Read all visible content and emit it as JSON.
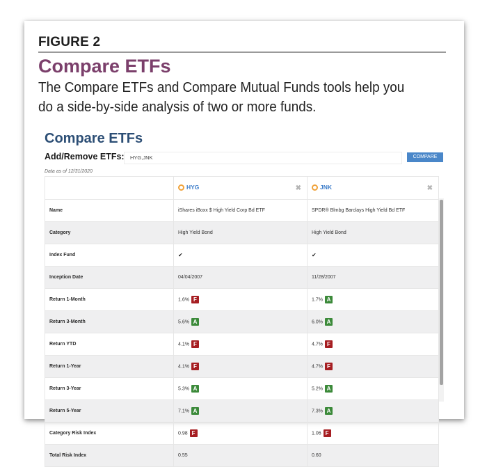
{
  "figure": {
    "label": "FIGURE 2",
    "title": "Compare ETFs",
    "description": "The Compare ETFs and Compare Mutual Funds tools help you do a side-by-side analysis of two or more funds."
  },
  "app": {
    "title": "Compare ETFs",
    "add_remove_label": "Add/Remove ETFs:",
    "input_value": "HYG,JNK",
    "compare_button": "COMPARE",
    "data_as_of": "Data as of 12/31/2020"
  },
  "funds": [
    {
      "ticker": "HYG",
      "remove_icon": "close-icon"
    },
    {
      "ticker": "JNK",
      "remove_icon": "close-icon"
    }
  ],
  "rows": [
    {
      "label": "Name",
      "values": [
        {
          "text": "iShares iBoxx $ High Yield Corp Bd ETF"
        },
        {
          "text": "SPDR® Blmbg Barclays High Yield Bd ETF"
        }
      ]
    },
    {
      "label": "Category",
      "values": [
        {
          "text": "High Yield Bond"
        },
        {
          "text": "High Yield Bond"
        }
      ]
    },
    {
      "label": "Index Fund",
      "values": [
        {
          "text": "✔"
        },
        {
          "text": "✔"
        }
      ]
    },
    {
      "label": "Inception Date",
      "values": [
        {
          "text": "04/04/2007"
        },
        {
          "text": "11/28/2007"
        }
      ]
    },
    {
      "label": "Return 1-Month",
      "values": [
        {
          "text": "1.6%",
          "grade": "F"
        },
        {
          "text": "1.7%",
          "grade": "A"
        }
      ]
    },
    {
      "label": "Return 3-Month",
      "values": [
        {
          "text": "5.6%",
          "grade": "A"
        },
        {
          "text": "6.0%",
          "grade": "A"
        }
      ]
    },
    {
      "label": "Return YTD",
      "values": [
        {
          "text": "4.1%",
          "grade": "F"
        },
        {
          "text": "4.7%",
          "grade": "F"
        }
      ]
    },
    {
      "label": "Return 1-Year",
      "values": [
        {
          "text": "4.1%",
          "grade": "F"
        },
        {
          "text": "4.7%",
          "grade": "F"
        }
      ]
    },
    {
      "label": "Return 3-Year",
      "values": [
        {
          "text": "5.3%",
          "grade": "A"
        },
        {
          "text": "5.2%",
          "grade": "A"
        }
      ]
    },
    {
      "label": "Return 5-Year",
      "values": [
        {
          "text": "7.1%",
          "grade": "A"
        },
        {
          "text": "7.3%",
          "grade": "A"
        }
      ]
    },
    {
      "label": "Category Risk Index",
      "values": [
        {
          "text": "0.98",
          "grade": "F"
        },
        {
          "text": "1.06",
          "grade": "F"
        }
      ]
    },
    {
      "label": "Total Risk Index",
      "values": [
        {
          "text": "0.55"
        },
        {
          "text": "0.60"
        }
      ]
    }
  ],
  "colors": {
    "figure_title": "#7b3f6b",
    "app_title": "#2c4e75",
    "ticker": "#3d7dca",
    "button": "#4a87c9",
    "grade_F": "#a61e22",
    "grade_A": "#3c8a3a"
  }
}
